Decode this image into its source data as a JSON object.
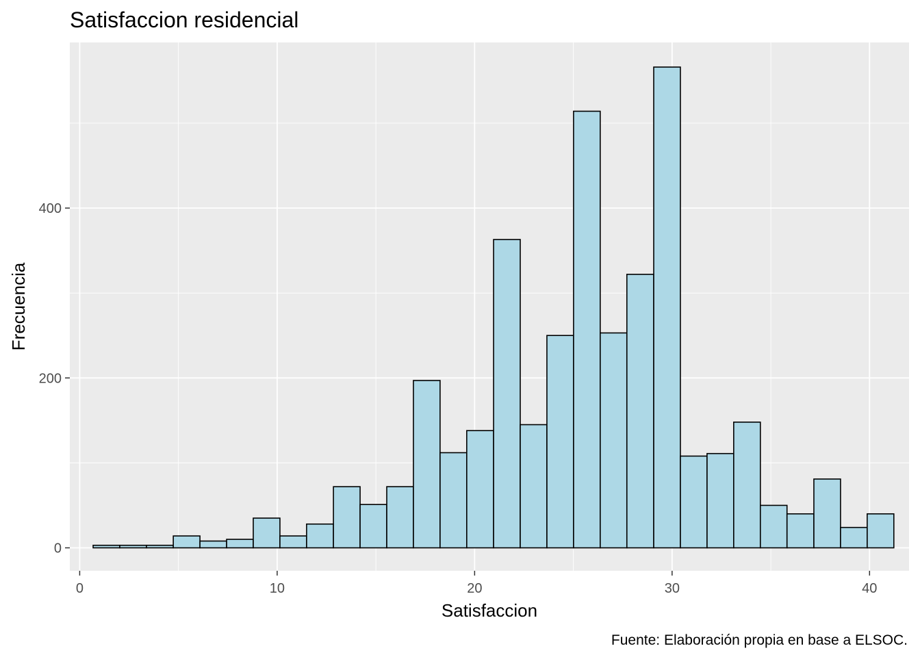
{
  "chart_data": {
    "type": "bar",
    "subtype": "histogram",
    "title": "Satisfaccion residencial",
    "xlabel": "Satisfaccion",
    "ylabel": "Frecuencia",
    "caption": "Fuente: Elaboración propia en base a ELSOC.",
    "xlim": [
      -0.5,
      42
    ],
    "ylim": [
      -27,
      595
    ],
    "x_ticks": [
      0,
      10,
      20,
      30,
      40
    ],
    "x_tick_labels": [
      "0",
      "10",
      "20",
      "30",
      "40"
    ],
    "y_ticks": [
      0,
      200,
      400
    ],
    "y_tick_labels": [
      "0",
      "200",
      "400"
    ],
    "grid": true,
    "legend": "none",
    "bin_width": 1.3517,
    "bins": [
      {
        "x0": 0.68,
        "x1": 2.03,
        "count": 3
      },
      {
        "x0": 2.03,
        "x1": 3.38,
        "count": 3
      },
      {
        "x0": 3.38,
        "x1": 4.74,
        "count": 3
      },
      {
        "x0": 4.74,
        "x1": 6.09,
        "count": 14
      },
      {
        "x0": 6.09,
        "x1": 7.44,
        "count": 8
      },
      {
        "x0": 7.44,
        "x1": 8.79,
        "count": 10
      },
      {
        "x0": 8.79,
        "x1": 10.14,
        "count": 35
      },
      {
        "x0": 10.14,
        "x1": 11.49,
        "count": 14
      },
      {
        "x0": 11.49,
        "x1": 12.85,
        "count": 28
      },
      {
        "x0": 12.85,
        "x1": 14.2,
        "count": 72
      },
      {
        "x0": 14.2,
        "x1": 15.55,
        "count": 51
      },
      {
        "x0": 15.55,
        "x1": 16.9,
        "count": 72
      },
      {
        "x0": 16.9,
        "x1": 18.25,
        "count": 197
      },
      {
        "x0": 18.25,
        "x1": 19.6,
        "count": 112
      },
      {
        "x0": 19.6,
        "x1": 20.96,
        "count": 138
      },
      {
        "x0": 20.96,
        "x1": 22.31,
        "count": 363
      },
      {
        "x0": 22.31,
        "x1": 23.66,
        "count": 145
      },
      {
        "x0": 23.66,
        "x1": 25.01,
        "count": 250
      },
      {
        "x0": 25.01,
        "x1": 26.36,
        "count": 514
      },
      {
        "x0": 26.36,
        "x1": 27.71,
        "count": 253
      },
      {
        "x0": 27.71,
        "x1": 29.07,
        "count": 322
      },
      {
        "x0": 29.07,
        "x1": 30.42,
        "count": 566
      },
      {
        "x0": 30.42,
        "x1": 31.77,
        "count": 108
      },
      {
        "x0": 31.77,
        "x1": 33.12,
        "count": 111
      },
      {
        "x0": 33.12,
        "x1": 34.47,
        "count": 148
      },
      {
        "x0": 34.47,
        "x1": 35.82,
        "count": 50
      },
      {
        "x0": 35.82,
        "x1": 37.18,
        "count": 40
      },
      {
        "x0": 37.18,
        "x1": 38.53,
        "count": 81
      },
      {
        "x0": 38.53,
        "x1": 39.88,
        "count": 24
      },
      {
        "x0": 39.88,
        "x1": 41.23,
        "count": 40
      }
    ]
  },
  "colors": {
    "panel_background": "#EBEBEB",
    "grid_major": "#FFFFFF",
    "bar_fill": "#ADD8E6",
    "bar_stroke": "#000000",
    "tick_mark": "#333333"
  }
}
